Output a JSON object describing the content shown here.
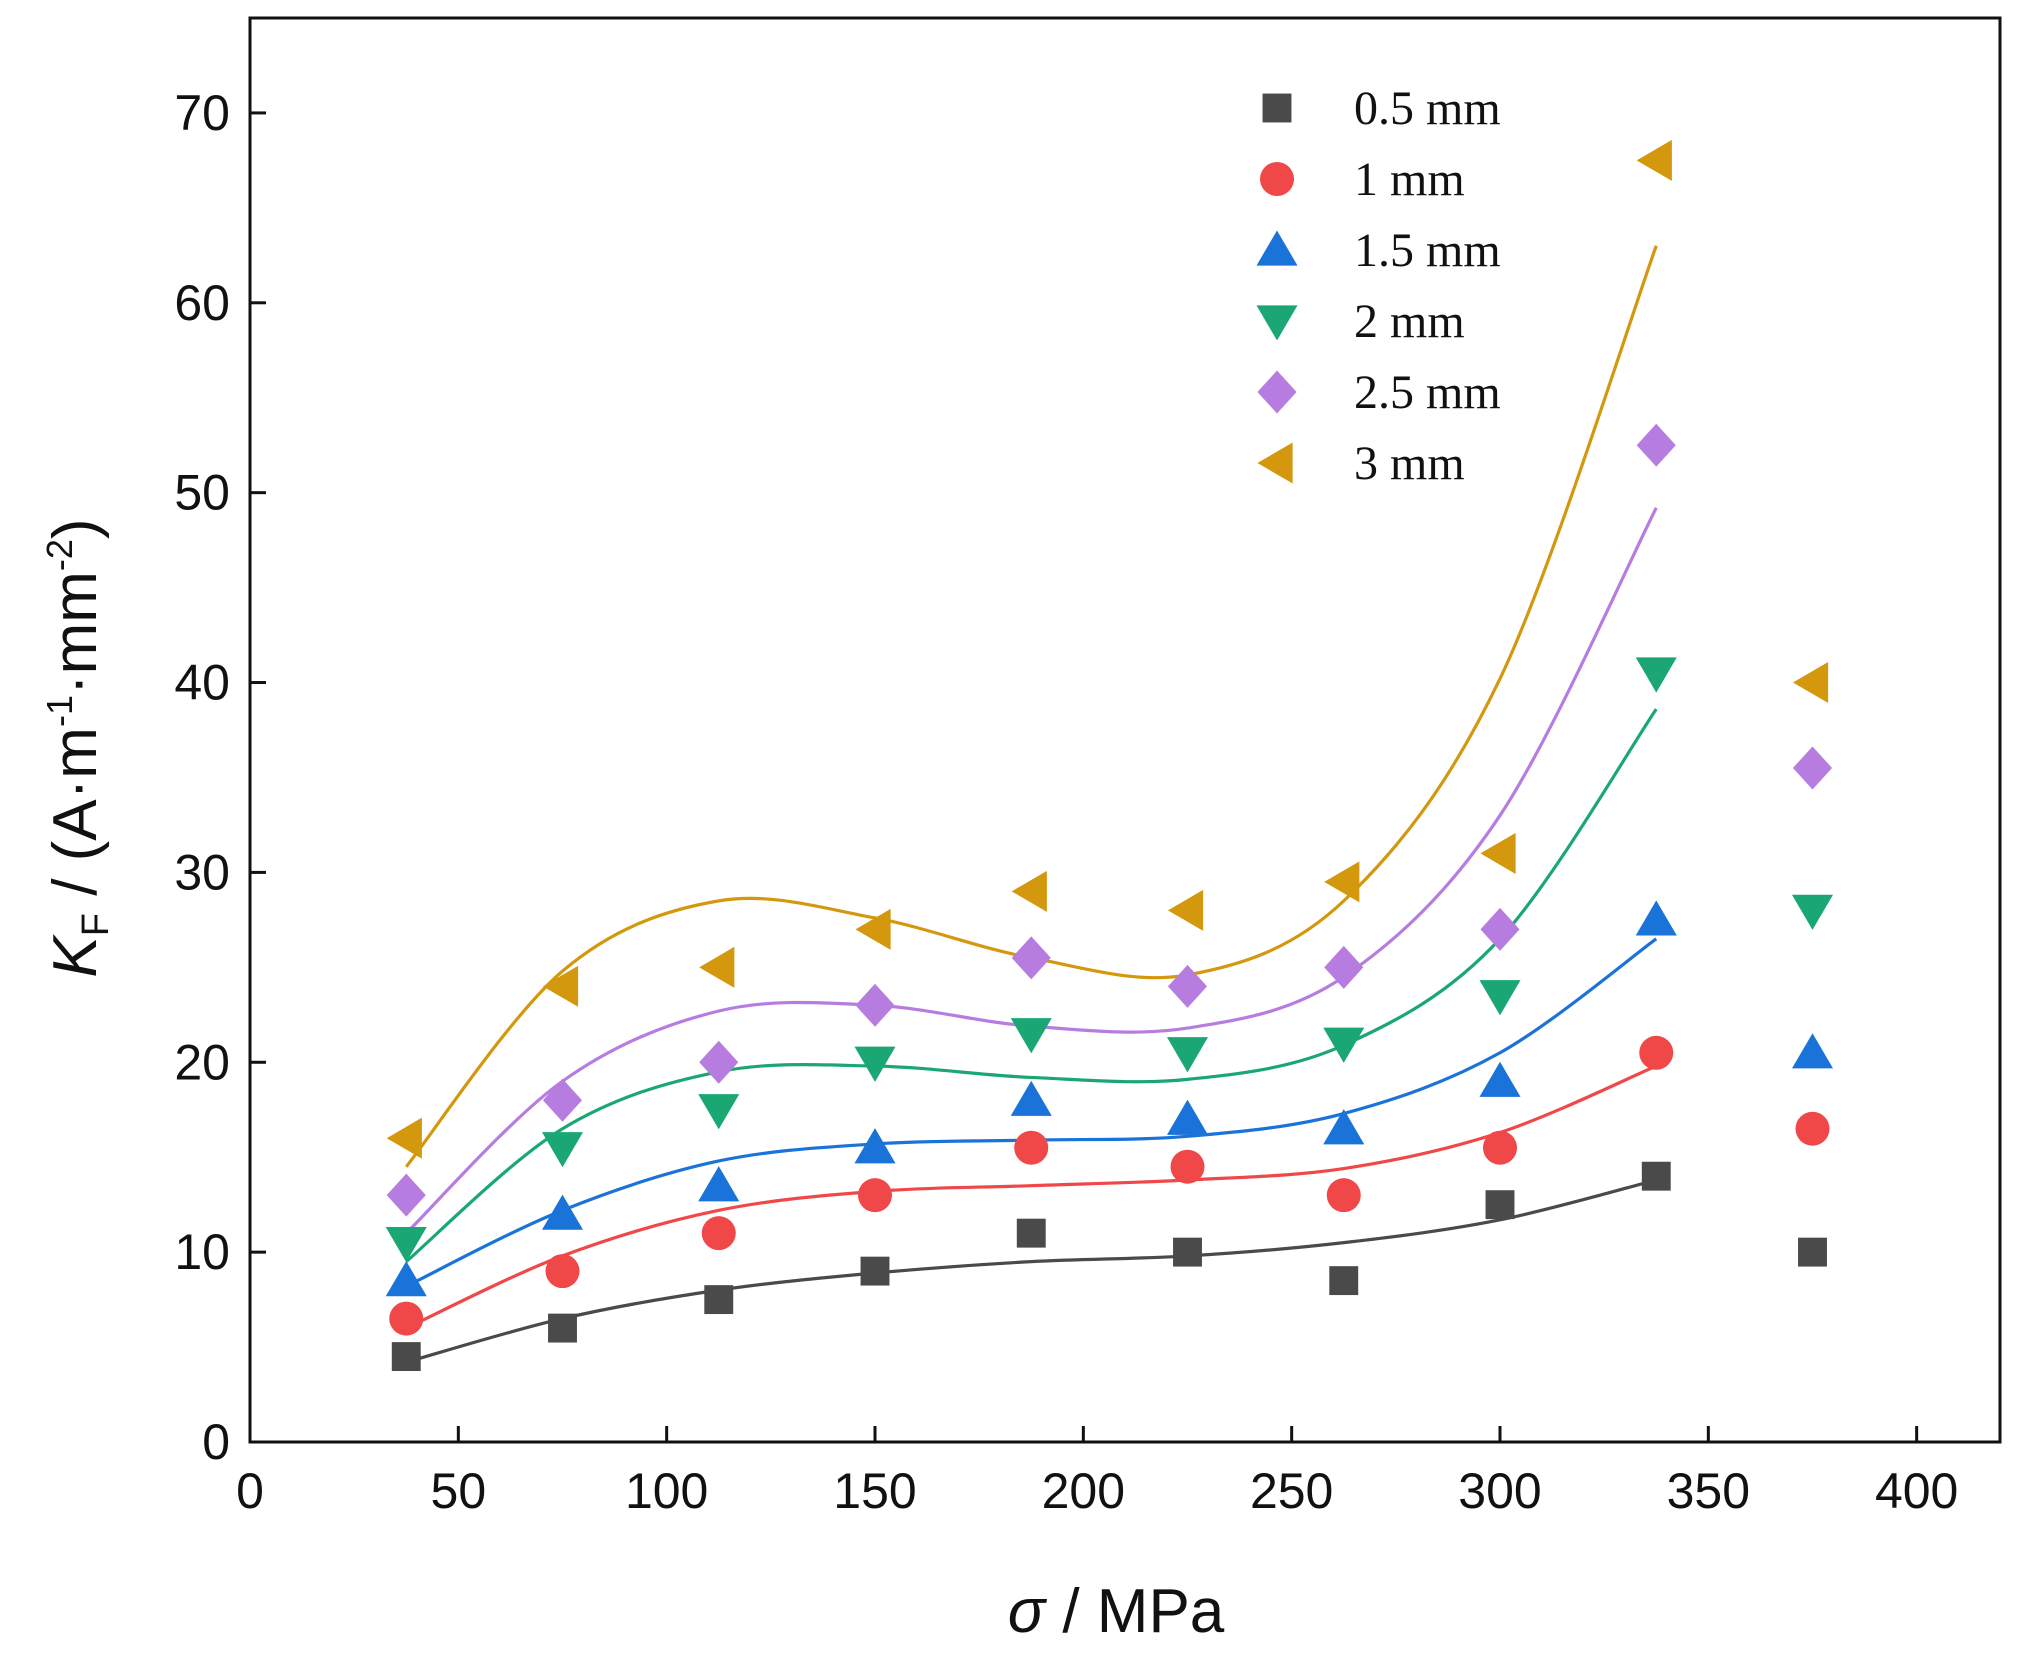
{
  "chart_data": {
    "type": "scatter",
    "title": "",
    "xlabel": {
      "symbol": "σ",
      "sep": " / ",
      "unit": "MPa"
    },
    "ylabel": {
      "symbol": "K",
      "subscript": "F",
      "sep": " / (A·m",
      "exp1": "-1",
      "mid": "·mm",
      "exp2": "-2",
      "close": ")"
    },
    "xlim": [
      0,
      420
    ],
    "ylim": [
      0,
      75
    ],
    "xticks": [
      0,
      50,
      100,
      150,
      200,
      250,
      300,
      350,
      400
    ],
    "yticks": [
      0,
      10,
      20,
      30,
      40,
      50,
      60,
      70
    ],
    "grid": false,
    "legend_position": "top-right",
    "x": [
      37.5,
      75,
      112.5,
      150,
      187.5,
      225,
      262.5,
      300,
      337.5,
      375
    ],
    "series": [
      {
        "name": "0.5 mm",
        "marker": "square",
        "color": "#4a4a4a",
        "values": [
          4.5,
          6,
          7.5,
          9,
          11,
          10,
          8.5,
          12.5,
          14,
          10
        ],
        "fit": [
          4.2,
          6.5,
          8.0,
          8.9,
          9.5,
          9.8,
          10.5,
          11.7,
          13.8
        ]
      },
      {
        "name": "1 mm",
        "marker": "circle",
        "color": "#f04848",
        "values": [
          6.5,
          9,
          11,
          13,
          15.5,
          14.5,
          13,
          15.5,
          20.5,
          16.5
        ],
        "fit": [
          6.0,
          9.8,
          12.2,
          13.2,
          13.5,
          13.8,
          14.4,
          16.3,
          19.8
        ]
      },
      {
        "name": "1.5 mm",
        "marker": "triangle-up",
        "color": "#1a73d9",
        "values": [
          8.5,
          12,
          13.5,
          15.5,
          18,
          17,
          16.5,
          19,
          27.5,
          20.5
        ],
        "fit": [
          8.2,
          12.2,
          14.8,
          15.7,
          15.9,
          16.1,
          17.3,
          20.5,
          26.5
        ]
      },
      {
        "name": "2 mm",
        "marker": "triangle-down",
        "color": "#1aa774",
        "values": [
          10.5,
          15.5,
          17.5,
          20,
          21.5,
          20.5,
          21,
          23.5,
          40.5,
          28
        ],
        "fit": [
          9.5,
          16.5,
          19.5,
          19.8,
          19.2,
          19.1,
          20.9,
          26.5,
          38.6
        ]
      },
      {
        "name": "2.5 mm",
        "marker": "diamond",
        "color": "#b77ce0",
        "values": [
          13,
          18,
          20,
          23,
          25.5,
          24,
          25,
          27,
          52.5,
          35.5
        ],
        "fit": [
          11.0,
          19.0,
          22.7,
          23.0,
          21.9,
          21.8,
          24.5,
          33.0,
          49.2
        ]
      },
      {
        "name": "3 mm",
        "marker": "triangle-left",
        "color": "#d4980f",
        "values": [
          16,
          24,
          25,
          27,
          29,
          28,
          29.5,
          31,
          67.5,
          40
        ],
        "fit": [
          14.5,
          24.8,
          28.5,
          27.6,
          25.5,
          24.6,
          28.5,
          40.2,
          63.0
        ]
      }
    ]
  }
}
